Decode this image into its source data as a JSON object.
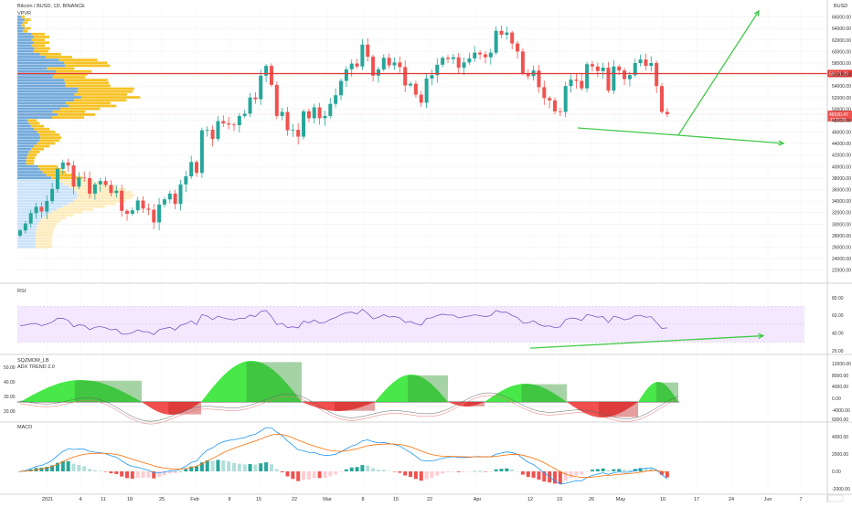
{
  "header": {
    "title": "Bitcoin / BUSD, 1D, BINANCE",
    "indicator": "VPVR",
    "currency": "BUSD"
  },
  "colors": {
    "up": "#26a69a",
    "down": "#ef5350",
    "resistance_line": "#e53935",
    "projection": "#43c94a",
    "rsi_line": "#7e57c2",
    "rsi_band": "#f3e8ff",
    "vpvr_up": "#5b9bd5",
    "vpvr_down": "#f5b800",
    "macd": "#2196f3",
    "signal": "#ff6d00",
    "squeeze_up": "#33e633",
    "squeeze_down": "#ef3b3b"
  },
  "chart_data": [
    {
      "type": "candlestick",
      "panel": "price",
      "title": "Bitcoin / BUSD, 1D, BINANCE",
      "y_ticks": [
        "66000.00",
        "64000.00",
        "62000.00",
        "60000.00",
        "58000.00",
        "56000.00",
        "54000.00",
        "52000.00",
        "50000.00",
        "48000.00",
        "46000.00",
        "44000.00",
        "42000.00",
        "40000.00",
        "38000.00",
        "36000.00",
        "34000.00",
        "32000.00",
        "30000.00",
        "28000.00",
        "26000.00",
        "24000.00",
        "22000.00"
      ],
      "ylim": [
        21000,
        68000
      ],
      "x_ticks": [
        "2021",
        "4",
        "11",
        "18",
        "25",
        "Feb",
        "8",
        "15",
        "22",
        "Mar",
        "8",
        "15",
        "22",
        "Apr",
        "12",
        "19",
        "26",
        "May",
        "10",
        "17",
        "24",
        "Jun",
        "7"
      ],
      "horizontal_level": {
        "value": 56171.29,
        "label": "56171.29"
      },
      "last_price": {
        "value": 49100.47,
        "label": "49100.47",
        "sub_label": "23:11:31"
      },
      "candles_close": [
        28900,
        30100,
        31900,
        33000,
        32200,
        34000,
        36100,
        39600,
        40700,
        40200,
        36500,
        38100,
        38000,
        35300,
        36900,
        37500,
        36800,
        35400,
        35800,
        32300,
        31800,
        32400,
        34100,
        32700,
        32500,
        30300,
        33400,
        34300,
        35300,
        33500,
        36900,
        38300,
        40800,
        38900,
        46300,
        46400,
        44800,
        47900,
        47500,
        47300,
        47200,
        48800,
        49200,
        52000,
        51700,
        55800,
        57500,
        54200,
        48800,
        49500,
        46300,
        46400,
        45200,
        49600,
        48400,
        50300,
        48400,
        48800,
        50900,
        52400,
        54900,
        56900,
        57900,
        57400,
        61200,
        59100,
        55800,
        56900,
        58900,
        57600,
        58100,
        57300,
        54100,
        54400,
        52500,
        51100,
        55300,
        55900,
        57700,
        58900,
        58700,
        59000,
        57200,
        58100,
        58800,
        59800,
        59500,
        59000,
        59800,
        63600,
        62900,
        63300,
        61400,
        60000,
        56200,
        55700,
        56700,
        53800,
        51900,
        51500,
        49600,
        49500,
        54000,
        55100,
        54900,
        53600,
        57800,
        57400,
        56600,
        57200,
        53200,
        57400,
        56700,
        55200,
        55900,
        58000,
        58600,
        57500,
        58000,
        54000,
        49500,
        49100
      ]
    },
    {
      "type": "line",
      "panel": "rsi",
      "title": "RSI",
      "y_ticks": [
        "80.00",
        "60.00",
        "40.00",
        "20.00"
      ],
      "ylim": [
        18,
        88
      ],
      "band": [
        30,
        70
      ]
    },
    {
      "type": "area",
      "panel": "squeeze_momentum",
      "title": "SQZMOM_LB",
      "subtitle": "ADX TREND 2.0",
      "y_ticks_left": [
        "50.00",
        "40.00",
        "30.00",
        "20.00"
      ],
      "y_ticks_right": [
        "12000.00",
        "8000.00",
        "4000.00",
        "0.00",
        "-4000.00"
      ]
    },
    {
      "type": "line",
      "panel": "macd",
      "title": "MACD",
      "y_ticks": [
        "6000.00",
        "4000.00",
        "2000.00",
        "0.00",
        "-2000.00"
      ]
    }
  ]
}
